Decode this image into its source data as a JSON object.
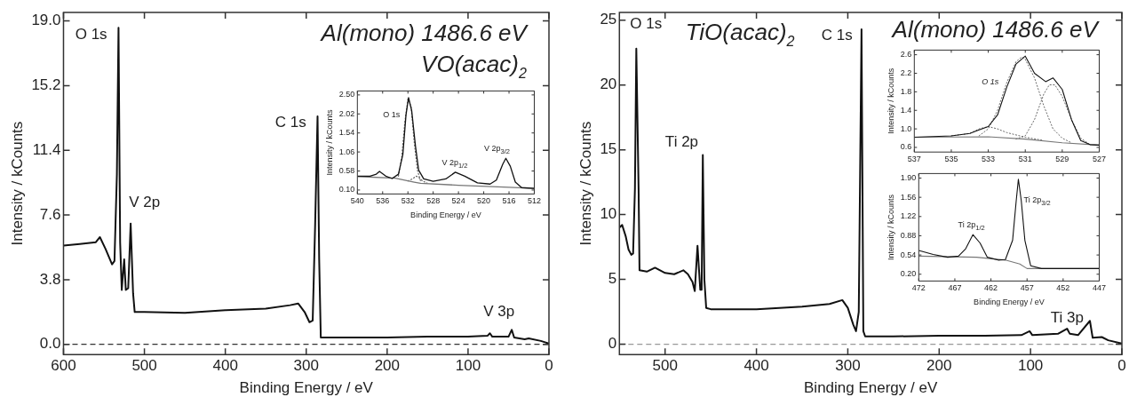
{
  "chart_data": [
    {
      "type": "line",
      "xlabel": "Binding Energy / eV",
      "ylabel": "Intensity / kCounts",
      "xlim": [
        600,
        0
      ],
      "xticks": [
        600,
        500,
        400,
        300,
        200,
        100,
        0
      ],
      "ylim": [
        -0.6,
        19.5
      ],
      "yticks": [
        {
          "value": 0,
          "label": "0.0"
        },
        3.8,
        7.6,
        11.4,
        15.2,
        {
          "value": 19,
          "label": "19.0"
        }
      ],
      "grid": false,
      "line_style": "solid",
      "series": [
        {
          "color": "#111111",
          "x": [
            600,
            580,
            560,
            555,
            548,
            540,
            537,
            534,
            532,
            530,
            528,
            525,
            523,
            520,
            517,
            514,
            512,
            500,
            450,
            400,
            350,
            320,
            310,
            302,
            296,
            292,
            289,
            286,
            284,
            282,
            250,
            200,
            150,
            100,
            76,
            73,
            70,
            50,
            46,
            43,
            30,
            25,
            10,
            0
          ],
          "values": [
            5.8,
            5.9,
            6.0,
            6.3,
            5.6,
            4.7,
            4.9,
            10,
            18.6,
            6,
            3.2,
            5.0,
            3.2,
            3.3,
            7.1,
            3,
            1.9,
            1.9,
            1.85,
            2.0,
            2.1,
            2.3,
            2.4,
            1.9,
            1.3,
            1.4,
            7,
            13.4,
            5,
            0.4,
            0.4,
            0.4,
            0.45,
            0.45,
            0.5,
            0.65,
            0.45,
            0.45,
            0.85,
            0.4,
            0.3,
            0.35,
            0.2,
            0.05
          ]
        }
      ],
      "ref_lines": [
        {
          "axis": "y",
          "value": 0,
          "color": "#333333",
          "line_style": "dashed"
        }
      ],
      "annotations": [
        "O 1s",
        "V 2p",
        "C 1s",
        "V 3p",
        "Al(mono) 1486.6 eV",
        "VO(acac)$_{2}$"
      ]
    },
    {
      "type": "line",
      "xlabel": "Binding Energy / eV",
      "ylabel": "Intensity / kCounts",
      "xlim": [
        540,
        512
      ],
      "xticks": [
        540,
        536,
        532,
        528,
        524,
        520,
        516,
        512
      ],
      "ylim": [
        0,
        2.6
      ],
      "yticks": [
        {
          "value": 0.1,
          "label": "0.10"
        },
        0.58,
        1.06,
        1.54,
        2.02,
        {
          "value": 2.5,
          "label": "2.50"
        }
      ],
      "grid": false,
      "series": [
        {
          "color": "#111111",
          "x": [
            540,
            538,
            537,
            536.5,
            535.5,
            534.5,
            533.5,
            532.8,
            532.3,
            531.9,
            531.4,
            530.8,
            530.3,
            529.5,
            528,
            526,
            524.5,
            523,
            521,
            519,
            518,
            517,
            516.5,
            515.8,
            515,
            514,
            512
          ],
          "values": [
            0.45,
            0.45,
            0.5,
            0.57,
            0.45,
            0.39,
            0.5,
            1.0,
            2.0,
            2.43,
            2.1,
            1.2,
            0.6,
            0.38,
            0.32,
            0.38,
            0.55,
            0.45,
            0.28,
            0.25,
            0.35,
            0.75,
            0.9,
            0.7,
            0.3,
            0.16,
            0.14
          ]
        },
        {
          "color": "#777777",
          "x": [
            540,
            534,
            531,
            530,
            524,
            516,
            512
          ],
          "values": [
            0.44,
            0.4,
            0.3,
            0.27,
            0.22,
            0.17,
            0.14
          ]
        },
        {
          "color": "#666666",
          "line_style": "dotted",
          "x": [
            533.5,
            533,
            532.5,
            532,
            531.5,
            531,
            530.5,
            530
          ],
          "values": [
            0.45,
            0.9,
            1.8,
            2.4,
            2.2,
            1.3,
            0.6,
            0.33
          ]
        },
        {
          "color": "#666666",
          "line_style": "dotted",
          "x": [
            532,
            531.3,
            530.7,
            530.3,
            529.7,
            529
          ],
          "values": [
            0.33,
            0.38,
            0.45,
            0.42,
            0.33,
            0.28
          ]
        }
      ],
      "annotations": [
        "O 1s",
        "V 2p$_{1/2}$",
        "V 2p$_{3/2}$"
      ]
    },
    {
      "type": "line",
      "xlabel": "Binding Energy / eV",
      "ylabel": "Intensity / kCounts",
      "xlim": [
        550,
        0
      ],
      "xticks": [
        500,
        400,
        300,
        200,
        100,
        0
      ],
      "ylim": [
        -0.8,
        25.6
      ],
      "yticks": [
        0,
        5,
        10,
        15,
        20,
        25
      ],
      "grid": false,
      "line_style": "solid",
      "series": [
        {
          "color": "#111111",
          "x": [
            550,
            547,
            543,
            540,
            537,
            535,
            533,
            531.5,
            529,
            528,
            520,
            511,
            500,
            490,
            480,
            475,
            470,
            467.5,
            464.5,
            461.5,
            460,
            458.7,
            457,
            455,
            450,
            400,
            350,
            320,
            306,
            300,
            294,
            291,
            288,
            285,
            283,
            281,
            250,
            200,
            150,
            110,
            101,
            98,
            70,
            60,
            57,
            48,
            35,
            32,
            22,
            15,
            0
          ],
          "values": [
            9.0,
            9.2,
            8.3,
            7.3,
            6.9,
            7.0,
            12,
            22.8,
            12,
            5.7,
            5.6,
            5.9,
            5.5,
            5.4,
            5.7,
            5.4,
            4.8,
            4.1,
            7.6,
            4.2,
            4.2,
            14.6,
            5,
            2.8,
            2.7,
            2.7,
            2.9,
            3.1,
            3.4,
            2.8,
            1.5,
            1.0,
            2.5,
            24.3,
            1,
            0.6,
            0.6,
            0.65,
            0.65,
            0.7,
            1.0,
            0.7,
            0.8,
            1.2,
            0.8,
            0.7,
            1.8,
            0.5,
            0.55,
            0.3,
            0.05
          ]
        }
      ],
      "ref_lines": [
        {
          "axis": "y",
          "value": 0,
          "color": "#999999",
          "line_style": "dashed"
        }
      ],
      "annotations": [
        "O 1s",
        "Ti 2p",
        "C 1s",
        "Ti 3p",
        "TiO(acac)$_{2}$",
        "Al(mono) 1486.6 eV"
      ]
    },
    {
      "type": "line",
      "xlabel": null,
      "ylabel": "Intensity / kCounts",
      "xlim": [
        537,
        527
      ],
      "xticks": [
        537,
        535,
        533,
        531,
        529,
        527
      ],
      "ylim": [
        0.5,
        2.7
      ],
      "yticks": [
        0.6,
        {
          "value": 1,
          "label": "1.0"
        },
        1.4,
        1.8,
        2.2,
        2.6
      ],
      "grid": false,
      "series": [
        {
          "color": "#111111",
          "x": [
            537,
            535,
            534,
            533.5,
            533,
            532.5,
            532,
            531.5,
            531,
            530.5,
            529.9,
            529.5,
            529,
            528.5,
            528,
            527.5,
            527
          ],
          "values": [
            0.82,
            0.85,
            0.9,
            0.98,
            1.05,
            1.3,
            1.9,
            2.4,
            2.57,
            2.2,
            2.02,
            2.1,
            1.85,
            1.2,
            0.75,
            0.66,
            0.65
          ]
        },
        {
          "color": "#777777",
          "x": [
            537,
            533,
            531,
            529,
            527
          ],
          "values": [
            0.82,
            0.83,
            0.78,
            0.7,
            0.65
          ]
        },
        {
          "color": "#666666",
          "line_style": "dotted",
          "x": [
            535,
            534,
            533.5,
            533,
            532.5,
            532,
            531,
            530
          ],
          "values": [
            0.85,
            0.9,
            1.0,
            1.05,
            1.0,
            0.92,
            0.82,
            0.75
          ]
        },
        {
          "color": "#666666",
          "line_style": "dotted",
          "x": [
            533.5,
            533,
            532.5,
            532,
            531.5,
            531.2,
            531,
            530.5,
            530,
            529.5,
            529,
            528.5
          ],
          "values": [
            0.85,
            1.0,
            1.4,
            2.0,
            2.45,
            2.55,
            2.5,
            2.1,
            1.5,
            1.0,
            0.8,
            0.7
          ]
        },
        {
          "color": "#666666",
          "line_style": "dotted",
          "x": [
            531.5,
            531,
            530.5,
            530,
            529.7,
            529.4,
            529,
            528.5,
            528,
            527.5
          ],
          "values": [
            0.78,
            0.85,
            1.2,
            1.75,
            1.95,
            1.95,
            1.7,
            1.2,
            0.8,
            0.66
          ]
        }
      ],
      "annotations": [
        "O 1s"
      ]
    },
    {
      "type": "line",
      "xlabel": "Binding Energy / eV",
      "ylabel": "Intensity / kCounts",
      "xlim": [
        472,
        447
      ],
      "xticks": [
        472,
        467,
        462,
        457,
        452,
        447
      ],
      "ylim": [
        0.08,
        1.98
      ],
      "yticks": [
        {
          "value": 0.2,
          "label": "0.20"
        },
        0.54,
        0.88,
        1.22,
        1.56,
        {
          "value": 1.9,
          "label": "1.90"
        }
      ],
      "grid": false,
      "series": [
        {
          "color": "#111111",
          "x": [
            472,
            470,
            468,
            466.5,
            465.5,
            464.5,
            463.5,
            462.5,
            461,
            460,
            459,
            458.5,
            458.2,
            457.8,
            457.3,
            456.5,
            455,
            452,
            447
          ],
          "values": [
            0.62,
            0.55,
            0.5,
            0.52,
            0.65,
            0.9,
            0.75,
            0.5,
            0.45,
            0.46,
            0.8,
            1.5,
            1.88,
            1.5,
            0.8,
            0.35,
            0.3,
            0.3,
            0.3
          ]
        },
        {
          "color": "#777777",
          "x": [
            472,
            464,
            460,
            458,
            457,
            447
          ],
          "values": [
            0.52,
            0.5,
            0.45,
            0.38,
            0.3,
            0.3
          ]
        }
      ],
      "annotations": [
        "Ti 2p$_{1/2}$",
        "Ti 2p$_{3/2}$"
      ]
    }
  ]
}
